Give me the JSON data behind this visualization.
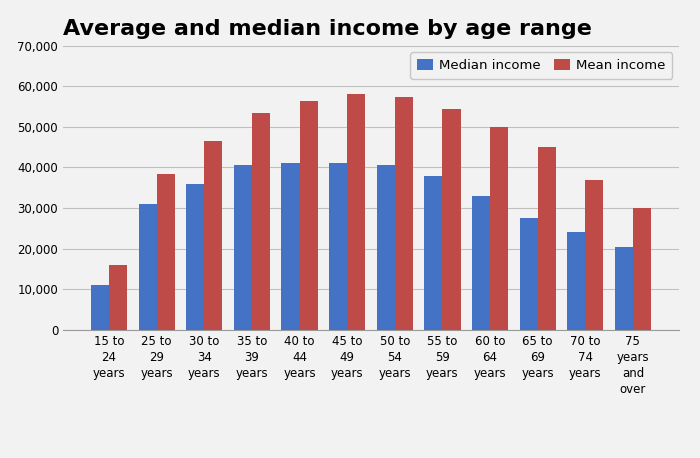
{
  "title": "Average and median income by age range",
  "categories": [
    "15 to\n24\nyears",
    "25 to\n29\nyears",
    "30 to\n34\nyears",
    "35 to\n39\nyears",
    "40 to\n44\nyears",
    "45 to\n49\nyears",
    "50 to\n54\nyears",
    "55 to\n59\nyears",
    "60 to\n64\nyears",
    "65 to\n69\nyears",
    "70 to\n74\nyears",
    "75\nyears\nand\nover"
  ],
  "median_income": [
    11000,
    31000,
    36000,
    40500,
    41000,
    41000,
    40500,
    38000,
    33000,
    27500,
    24000,
    20500
  ],
  "mean_income": [
    16000,
    38500,
    46500,
    53500,
    56500,
    58000,
    57500,
    54500,
    50000,
    45000,
    37000,
    30000
  ],
  "median_color": "#4472C4",
  "mean_color": "#BE4B48",
  "background_color": "#F2F2F2",
  "legend_labels": [
    "Median income",
    "Mean income"
  ],
  "ylim": [
    0,
    70000
  ],
  "yticks": [
    0,
    10000,
    20000,
    30000,
    40000,
    50000,
    60000,
    70000
  ],
  "title_fontsize": 16,
  "tick_fontsize": 8.5,
  "legend_fontsize": 9.5,
  "bar_width": 0.38,
  "grid_color": "#C0C0C0",
  "axis_color": "#888888"
}
